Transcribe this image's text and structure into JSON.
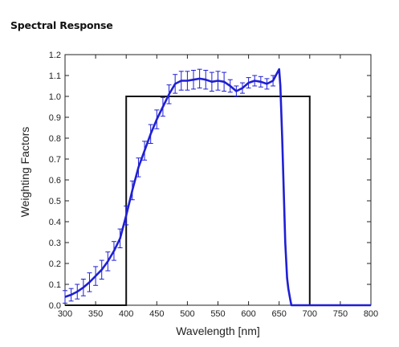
{
  "heading": "Spectral Response",
  "chart_data": {
    "type": "line",
    "title": "",
    "xlabel": "Wavelength [nm]",
    "ylabel": "Weighting Factors",
    "xlim": [
      300,
      800
    ],
    "ylim": [
      0,
      1.2
    ],
    "xticks": [
      "300",
      "350",
      "400",
      "450",
      "500",
      "550",
      "600",
      "650",
      "700",
      "750",
      "800"
    ],
    "yticks": [
      "0.0",
      "0.1",
      "0.2",
      "0.3",
      "0.4",
      "0.5",
      "0.6",
      "0.7",
      "0.8",
      "0.9",
      "1.0",
      "1.1",
      "1.2"
    ],
    "grid": false,
    "legend": "none",
    "colors": {
      "response": "#1f1fd4",
      "rect": "#111111"
    },
    "series": [
      {
        "x": [
          300,
          400,
          400,
          700,
          700,
          800
        ],
        "y": [
          0,
          0,
          1.0,
          1.0,
          0,
          0
        ]
      },
      {
        "x": [
          300,
          310,
          320,
          330,
          340,
          350,
          360,
          370,
          380,
          390,
          400,
          410,
          420,
          430,
          440,
          450,
          460,
          470,
          480,
          490,
          500,
          510,
          520,
          530,
          540,
          550,
          560,
          570,
          580,
          590,
          600,
          610,
          620,
          630,
          640,
          650,
          652,
          655,
          658,
          660,
          663,
          665,
          668,
          670,
          680,
          700,
          750,
          800
        ],
        "y": [
          0.04,
          0.05,
          0.065,
          0.085,
          0.11,
          0.14,
          0.17,
          0.21,
          0.26,
          0.32,
          0.43,
          0.55,
          0.66,
          0.74,
          0.82,
          0.89,
          0.95,
          1.01,
          1.06,
          1.075,
          1.075,
          1.08,
          1.085,
          1.08,
          1.07,
          1.075,
          1.07,
          1.05,
          1.025,
          1.04,
          1.065,
          1.075,
          1.07,
          1.06,
          1.075,
          1.13,
          1.05,
          0.8,
          0.5,
          0.3,
          0.13,
          0.08,
          0.03,
          0.0,
          0.0,
          0.0,
          0.0,
          0.0
        ],
        "error": [
          0.03,
          0.03,
          0.035,
          0.04,
          0.045,
          0.045,
          0.045,
          0.045,
          0.045,
          0.045,
          0.045,
          0.045,
          0.045,
          0.045,
          0.045,
          0.045,
          0.045,
          0.045,
          0.045,
          0.045,
          0.045,
          0.045,
          0.045,
          0.045,
          0.045,
          0.045,
          0.045,
          0.03,
          0.025,
          0.025,
          0.025,
          0.025,
          0.025,
          0.025,
          0.025,
          0.0,
          0.0,
          0.0,
          0.0,
          0.0,
          0.0,
          0.0,
          0.0,
          0.0,
          0.0,
          0.0,
          0.0,
          0.0
        ]
      }
    ]
  }
}
